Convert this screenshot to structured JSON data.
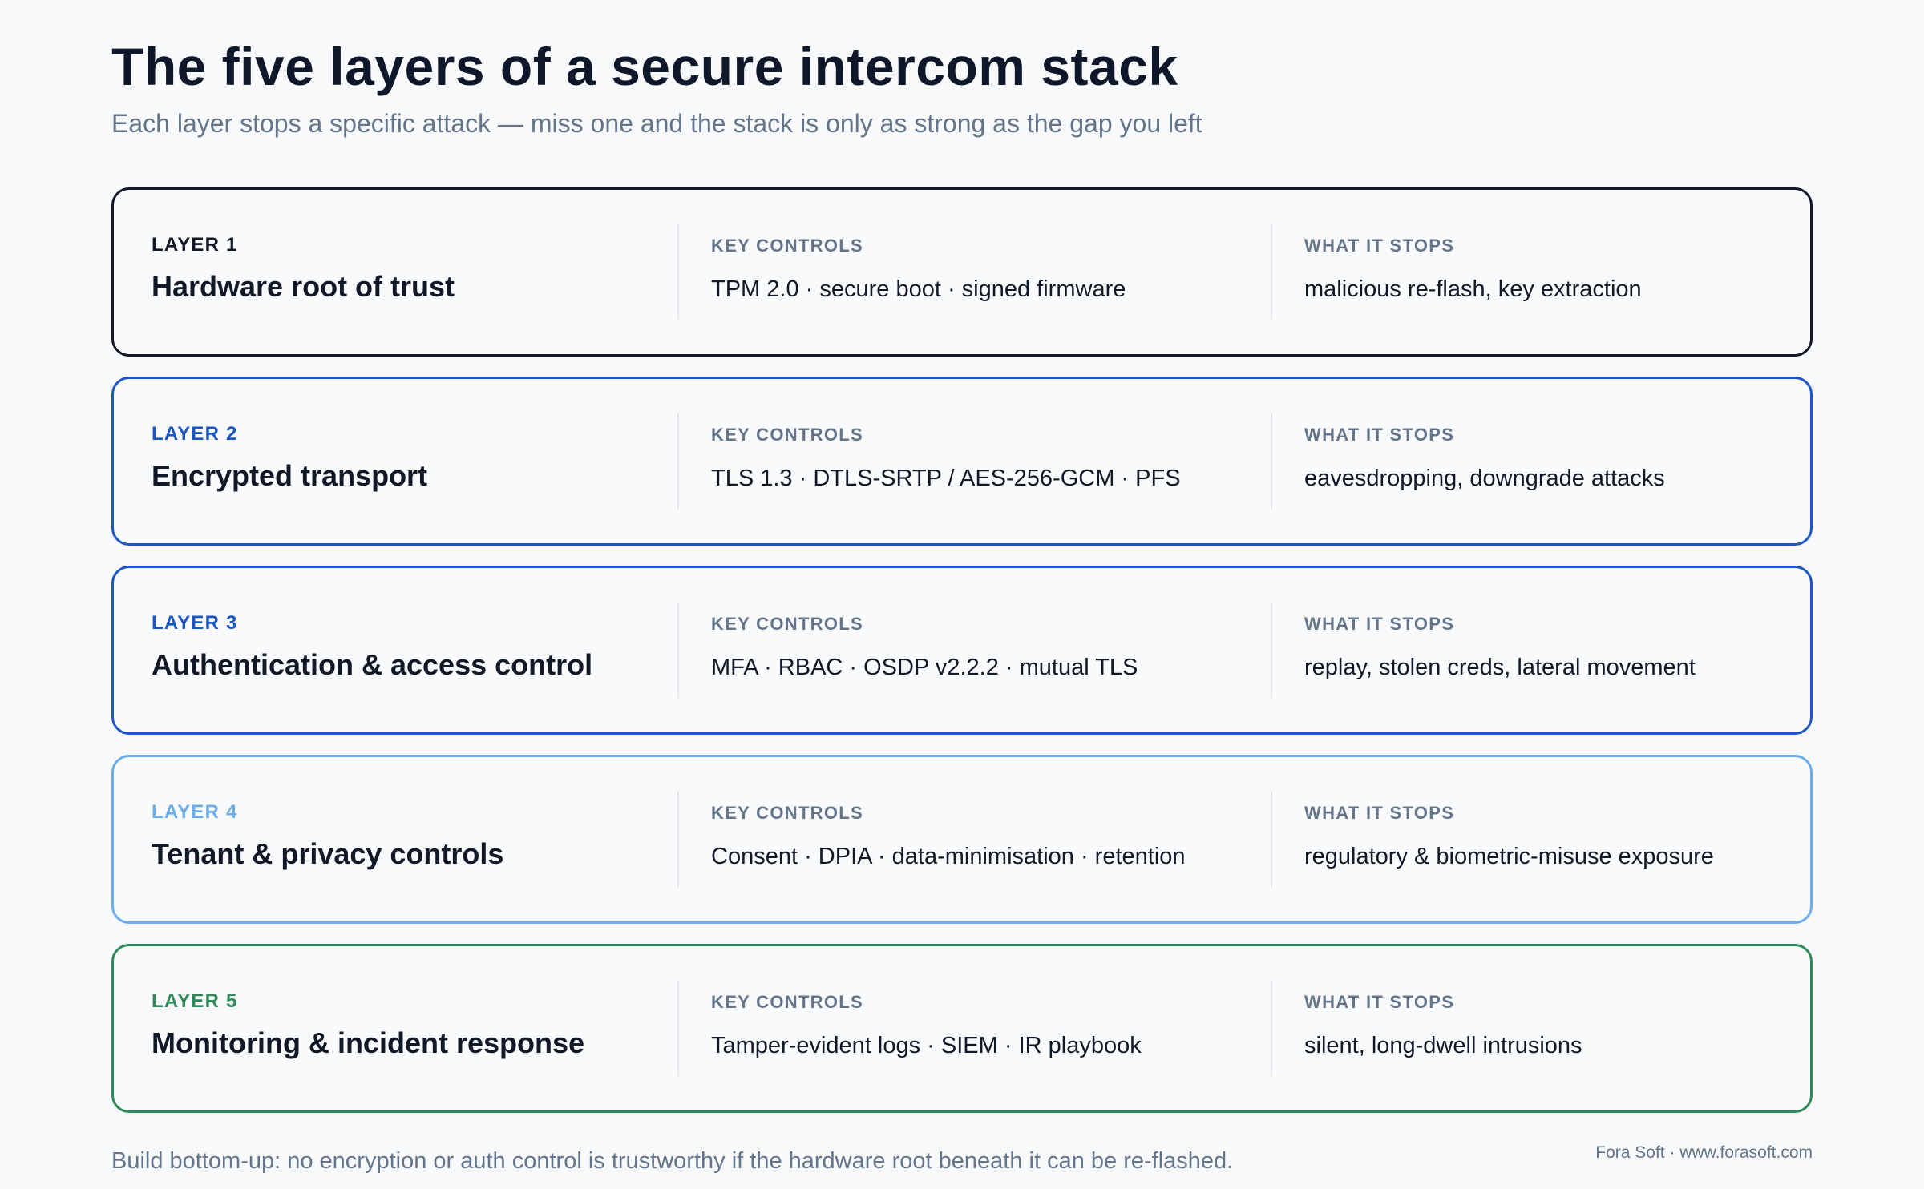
{
  "header": {
    "title": "The five layers of a secure intercom stack",
    "subtitle": "Each layer stops a specific attack — miss one and the stack is only as strong as the gap you left"
  },
  "layers": [
    {
      "tag": "LAYER 1",
      "name": "Hardware root of trust",
      "controls_label": "KEY CONTROLS",
      "controls": "TPM 2.0 · secure boot · signed firmware",
      "stops_label": "WHAT IT STOPS",
      "stops": "malicious re-flash, key extraction",
      "accent": "#111827"
    },
    {
      "tag": "LAYER 2",
      "name": "Encrypted transport",
      "controls_label": "KEY CONTROLS",
      "controls": "TLS 1.3 · DTLS-SRTP / AES-256-GCM · PFS",
      "stops_label": "WHAT IT STOPS",
      "stops": "eavesdropping, downgrade attacks",
      "accent": "#1a56c4"
    },
    {
      "tag": "LAYER 3",
      "name": "Authentication & access control",
      "controls_label": "KEY CONTROLS",
      "controls": "MFA · RBAC · OSDP v2.2.2 · mutual TLS",
      "stops_label": "WHAT IT STOPS",
      "stops": "replay, stolen creds, lateral movement",
      "accent": "#1a56c4"
    },
    {
      "tag": "LAYER 4",
      "name": "Tenant & privacy controls",
      "controls_label": "KEY CONTROLS",
      "controls": "Consent · DPIA · data-minimisation · retention",
      "stops_label": "WHAT IT STOPS",
      "stops": "regulatory & biometric-misuse exposure",
      "accent": "#6cadec"
    },
    {
      "tag": "LAYER 5",
      "name": "Monitoring & incident response",
      "controls_label": "KEY CONTROLS",
      "controls": "Tamper-evident logs · SIEM · IR playbook",
      "stops_label": "WHAT IT STOPS",
      "stops": "silent, long-dwell intrusions",
      "accent": "#2e8b57"
    }
  ],
  "footer": {
    "note": "Build bottom-up: no encryption or auth control is trustworthy if the hardware root beneath it can be re-flashed.",
    "credit": "Fora Soft · www.forasoft.com"
  }
}
